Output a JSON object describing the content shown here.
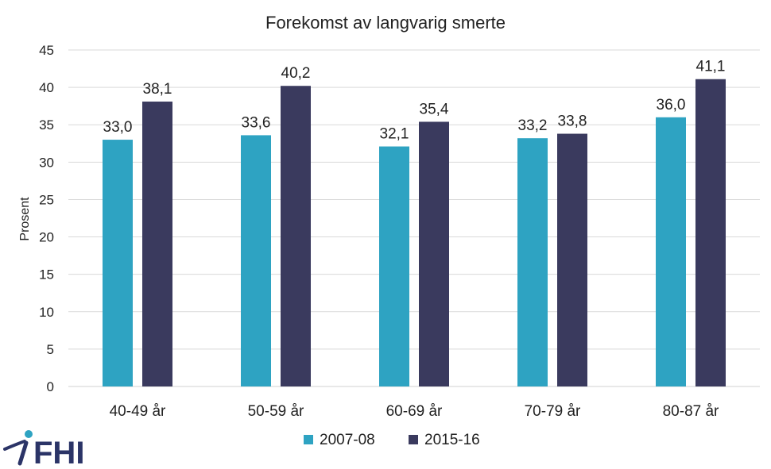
{
  "chart_data": {
    "type": "bar",
    "title": "Forekomst av langvarig smerte",
    "ylabel": "Prosent",
    "xlabel": "",
    "categories": [
      "40-49 år",
      "50-59 år",
      "60-69 år",
      "70-79 år",
      "80-87 år"
    ],
    "series": [
      {
        "name": "2007-08",
        "values": [
          33.0,
          33.6,
          32.1,
          33.2,
          36.0
        ],
        "labels": [
          "33,0",
          "33,6",
          "32,1",
          "33,2",
          "36,0"
        ],
        "color": "#2ea3c2"
      },
      {
        "name": "2015-16",
        "values": [
          38.1,
          40.2,
          35.4,
          33.8,
          41.1
        ],
        "labels": [
          "38,1",
          "40,2",
          "35,4",
          "33,8",
          "41,1"
        ],
        "color": "#3a3a5e"
      }
    ],
    "ylim": [
      0,
      45
    ],
    "yticks": [
      0,
      5,
      10,
      15,
      20,
      25,
      30,
      35,
      40,
      45
    ],
    "grid": true,
    "legend_position": "bottom"
  },
  "logo": {
    "text": "FHI",
    "icon": "fhi-figure-icon",
    "color": "#2b3467",
    "accent": "#2ea3c2"
  }
}
